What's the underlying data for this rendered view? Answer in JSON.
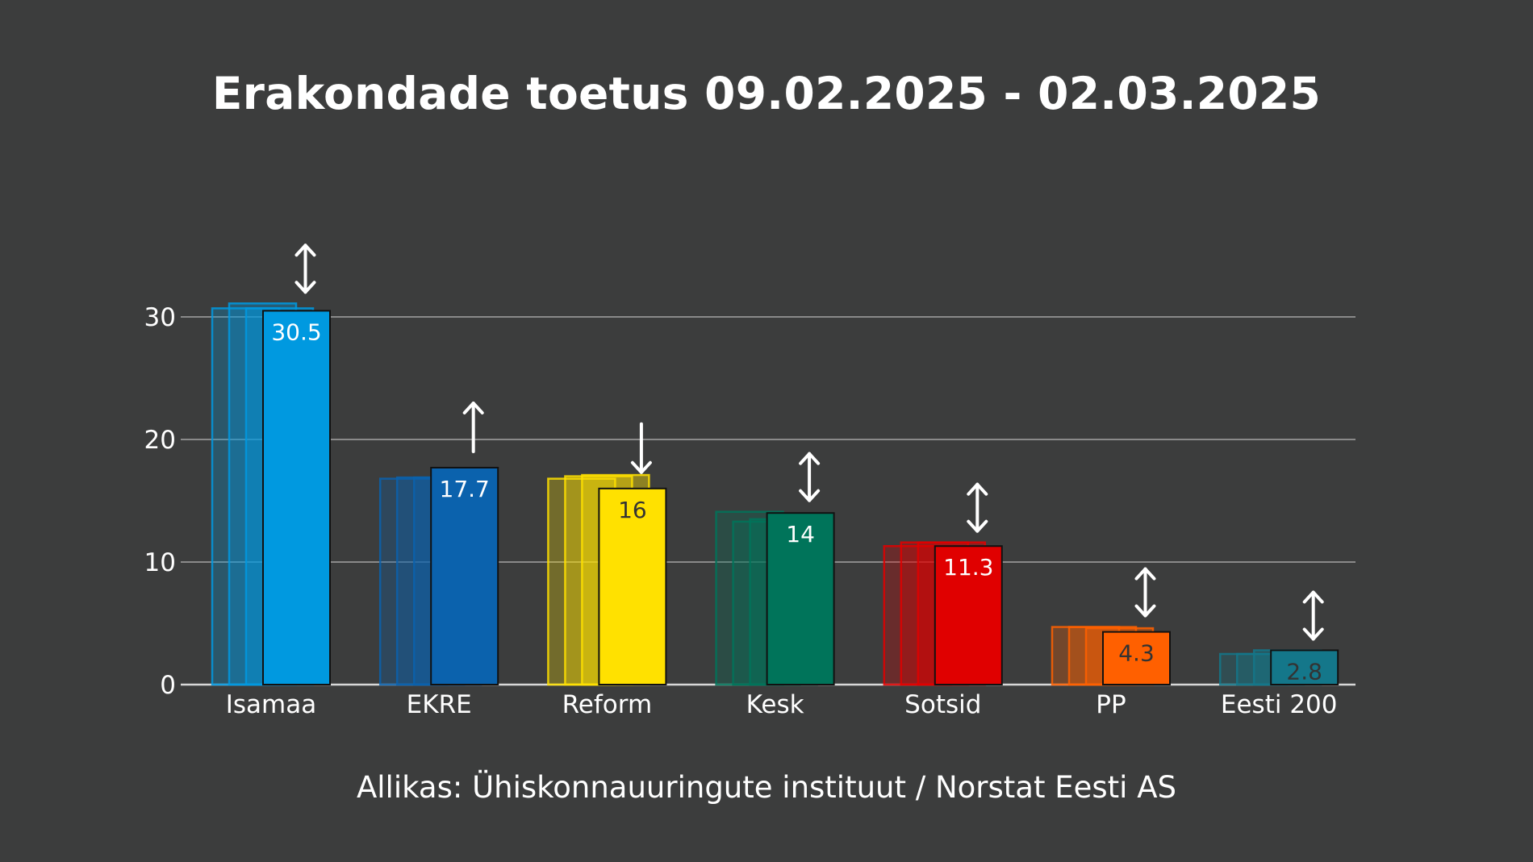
{
  "chart_data": {
    "type": "bar",
    "title": "Erakondade toetus 09.02.2025 - 02.03.2025",
    "source": "Allikas: Ühiskonnauuringute instituut / Norstat Eesti AS",
    "xlabel": "",
    "ylabel": "",
    "ylim": [
      0,
      35
    ],
    "yticks": [
      0,
      10,
      20,
      30
    ],
    "grid": true,
    "categories": [
      "Isamaa",
      "EKRE",
      "Reform",
      "Kesk",
      "Sotsid",
      "PP",
      "Eesti 200"
    ],
    "series": [
      {
        "values": [
          30.7,
          16.8,
          16.8,
          14.1,
          11.3,
          4.7,
          2.5
        ]
      },
      {
        "values": [
          31.1,
          16.9,
          17.0,
          13.3,
          11.6,
          4.7,
          2.5
        ]
      },
      {
        "values": [
          30.7,
          16.9,
          17.1,
          13.5,
          11.6,
          4.6,
          2.8
        ]
      },
      {
        "values": [
          30.5,
          17.7,
          16.0,
          14.0,
          11.3,
          4.3,
          2.8
        ]
      }
    ],
    "data_labels": [
      "30.5",
      "17.7",
      "16",
      "14",
      "11.3",
      "4.3",
      "2.8"
    ],
    "trend_arrows": [
      "both",
      "up",
      "down",
      "both",
      "both",
      "both",
      "both"
    ],
    "colors": [
      "#0099e0",
      "#0b62ad",
      "#ffe100",
      "#00745a",
      "#e00000",
      "#ff6000",
      "#14778a"
    ],
    "label_colors": [
      "#ffffff",
      "#ffffff",
      "#333333",
      "#ffffff",
      "#ffffff",
      "#333333",
      "#333333"
    ]
  }
}
